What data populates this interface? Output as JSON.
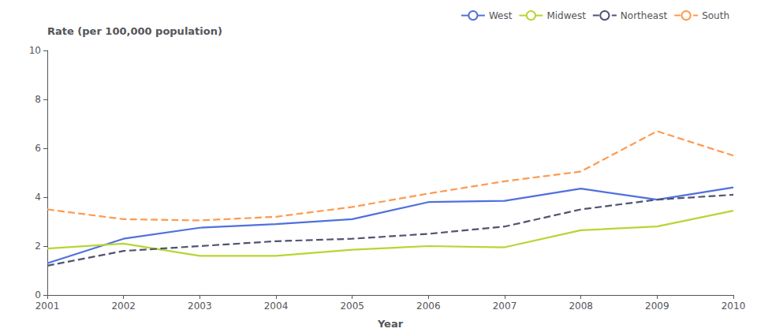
{
  "chart_data": {
    "type": "line",
    "ylabel": "Rate (per 100,000 population)",
    "xlabel": "Year",
    "x": [
      2001,
      2002,
      2003,
      2004,
      2005,
      2006,
      2007,
      2008,
      2009,
      2010
    ],
    "series": [
      {
        "name": "West",
        "line_style": "solid",
        "values": [
          1.3,
          2.3,
          2.75,
          2.9,
          3.1,
          3.8,
          3.85,
          4.35,
          3.9,
          4.4
        ]
      },
      {
        "name": "Midwest",
        "line_style": "solid",
        "values": [
          1.9,
          2.1,
          1.6,
          1.6,
          1.85,
          2.0,
          1.95,
          2.65,
          2.8,
          3.45
        ]
      },
      {
        "name": "Northeast",
        "line_style": "dashed",
        "values": [
          1.2,
          1.8,
          2.0,
          2.2,
          2.3,
          2.5,
          2.8,
          3.5,
          3.9,
          4.1
        ]
      },
      {
        "name": "South",
        "line_style": "dashed",
        "values": [
          3.5,
          3.1,
          3.05,
          3.2,
          3.6,
          4.15,
          4.65,
          5.05,
          6.7,
          5.7
        ]
      }
    ],
    "xlim": [
      2001,
      2010
    ],
    "xticks": [
      2001,
      2002,
      2003,
      2004,
      2005,
      2006,
      2007,
      2008,
      2009,
      2010
    ],
    "ylim": [
      0,
      10
    ],
    "yticks": [
      0,
      2,
      4,
      6,
      8,
      10
    ],
    "grid": false,
    "legend": "top"
  }
}
